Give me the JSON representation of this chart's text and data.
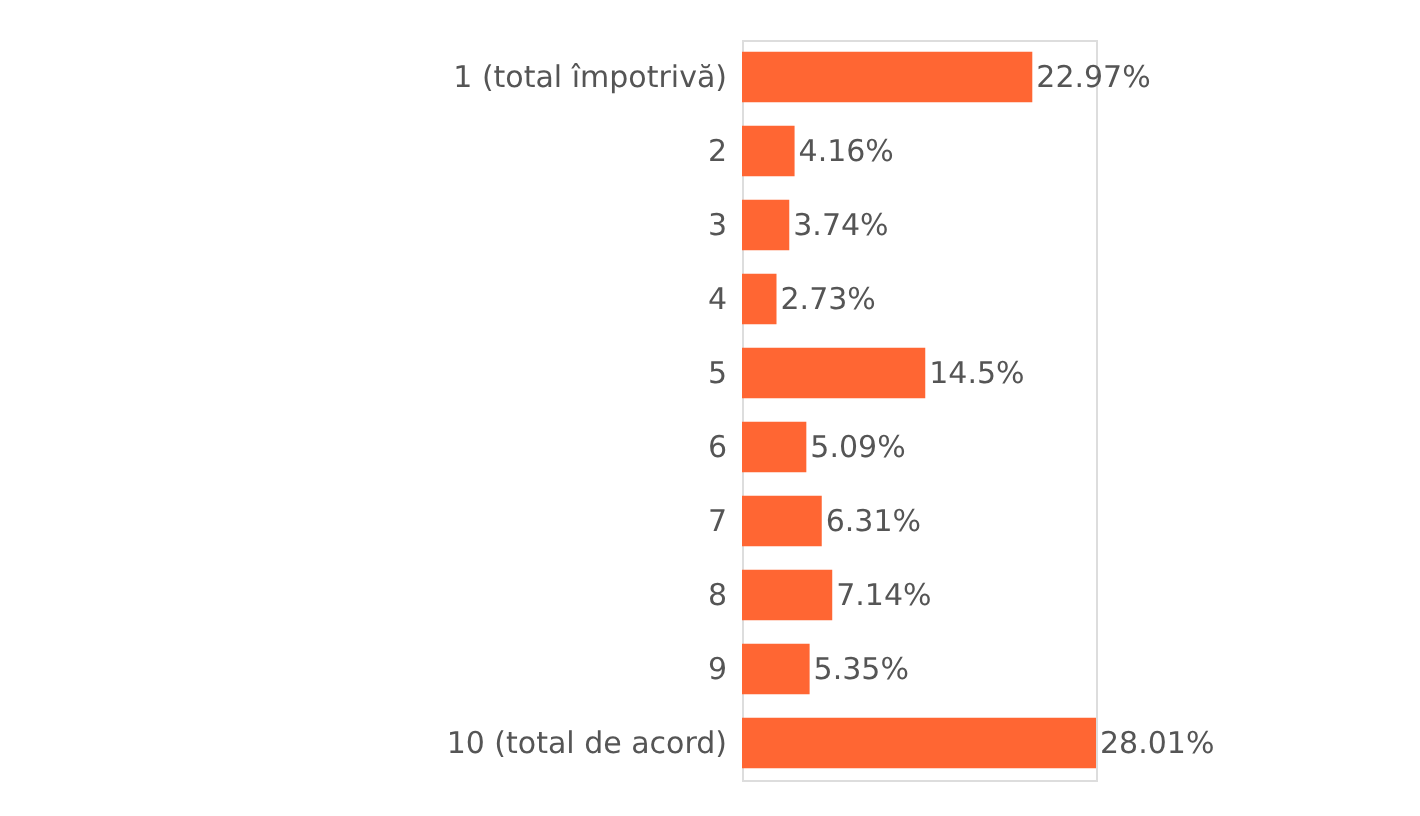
{
  "chart_data": {
    "type": "bar",
    "orientation": "horizontal",
    "categories": [
      "1 (total împotrivă)",
      "2",
      "3",
      "4",
      "5",
      "6",
      "7",
      "8",
      "9",
      "10 (total de acord)"
    ],
    "values": [
      22.97,
      4.16,
      3.74,
      2.73,
      14.5,
      5.09,
      6.31,
      7.14,
      5.35,
      28.01
    ],
    "value_labels": [
      "22.97%",
      "4.16%",
      "3.74%",
      "2.73%",
      "14.5%",
      "5.09%",
      "6.31%",
      "7.14%",
      "5.35%",
      "28.01%"
    ],
    "color": "#ff6633"
  }
}
